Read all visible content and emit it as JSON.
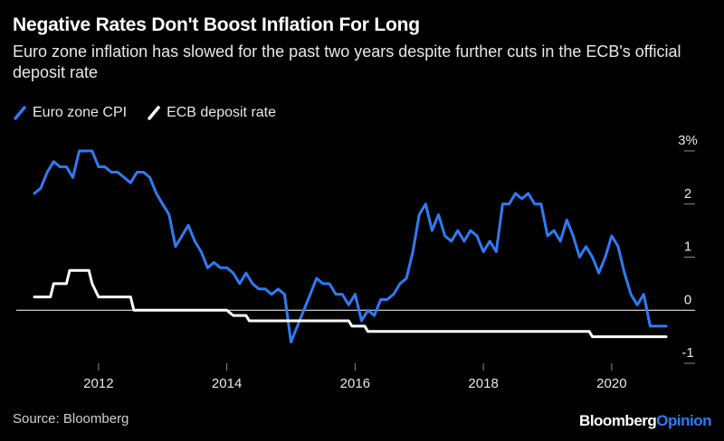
{
  "header": {
    "title": "Negative Rates Don't Boost Inflation For Long",
    "subtitle": "Euro zone inflation has slowed for the past two years despite further cuts in the ECB's official deposit rate"
  },
  "footer": {
    "source": "Source: Bloomberg",
    "brand_main": "Bloomberg",
    "brand_accent": "Opinion"
  },
  "colors": {
    "background": "#000000",
    "cpi": "#2f7bf5",
    "deposit": "#ffffff",
    "zero_line": "#ffffff",
    "brand_accent": "#2f7bf5"
  },
  "chart_data": {
    "type": "line",
    "title": "Negative Rates Don't Boost Inflation For Long",
    "xlabel": "",
    "ylabel": "",
    "xlim": [
      2011.0,
      2021.3
    ],
    "ylim": [
      -1,
      3
    ],
    "x_ticks": [
      2012,
      2014,
      2016,
      2018,
      2020
    ],
    "x_tick_labels": [
      "2012",
      "2014",
      "2016",
      "2018",
      "2020"
    ],
    "y_ticks": [
      3,
      2,
      1,
      0,
      -1
    ],
    "y_tick_labels": [
      "3%",
      "2",
      "1",
      "0",
      "-1"
    ],
    "legend": {
      "position": "top-left",
      "entries": [
        "Euro zone CPI",
        "ECB deposit rate"
      ]
    },
    "series": [
      {
        "name": "Euro zone CPI",
        "color": "#2f7bf5",
        "points": [
          [
            2011.0,
            2.2
          ],
          [
            2011.1,
            2.3
          ],
          [
            2011.2,
            2.6
          ],
          [
            2011.3,
            2.8
          ],
          [
            2011.4,
            2.7
          ],
          [
            2011.5,
            2.7
          ],
          [
            2011.6,
            2.5
          ],
          [
            2011.7,
            3.0
          ],
          [
            2011.8,
            3.0
          ],
          [
            2011.9,
            3.0
          ],
          [
            2012.0,
            2.7
          ],
          [
            2012.1,
            2.7
          ],
          [
            2012.2,
            2.6
          ],
          [
            2012.3,
            2.6
          ],
          [
            2012.4,
            2.5
          ],
          [
            2012.5,
            2.4
          ],
          [
            2012.6,
            2.6
          ],
          [
            2012.7,
            2.6
          ],
          [
            2012.8,
            2.5
          ],
          [
            2012.9,
            2.2
          ],
          [
            2013.0,
            2.0
          ],
          [
            2013.1,
            1.8
          ],
          [
            2013.2,
            1.2
          ],
          [
            2013.3,
            1.4
          ],
          [
            2013.4,
            1.6
          ],
          [
            2013.5,
            1.3
          ],
          [
            2013.6,
            1.1
          ],
          [
            2013.7,
            0.8
          ],
          [
            2013.8,
            0.9
          ],
          [
            2013.9,
            0.8
          ],
          [
            2014.0,
            0.8
          ],
          [
            2014.1,
            0.7
          ],
          [
            2014.2,
            0.5
          ],
          [
            2014.3,
            0.7
          ],
          [
            2014.4,
            0.5
          ],
          [
            2014.5,
            0.4
          ],
          [
            2014.6,
            0.4
          ],
          [
            2014.7,
            0.3
          ],
          [
            2014.8,
            0.4
          ],
          [
            2014.9,
            0.3
          ],
          [
            2015.0,
            -0.6
          ],
          [
            2015.1,
            -0.3
          ],
          [
            2015.2,
            0.0
          ],
          [
            2015.3,
            0.3
          ],
          [
            2015.4,
            0.6
          ],
          [
            2015.5,
            0.5
          ],
          [
            2015.6,
            0.5
          ],
          [
            2015.7,
            0.3
          ],
          [
            2015.8,
            0.3
          ],
          [
            2015.9,
            0.1
          ],
          [
            2016.0,
            0.3
          ],
          [
            2016.1,
            -0.2
          ],
          [
            2016.2,
            0.0
          ],
          [
            2016.3,
            -0.1
          ],
          [
            2016.4,
            0.2
          ],
          [
            2016.5,
            0.2
          ],
          [
            2016.6,
            0.3
          ],
          [
            2016.7,
            0.5
          ],
          [
            2016.8,
            0.6
          ],
          [
            2016.9,
            1.1
          ],
          [
            2017.0,
            1.8
          ],
          [
            2017.1,
            2.0
          ],
          [
            2017.2,
            1.5
          ],
          [
            2017.3,
            1.8
          ],
          [
            2017.4,
            1.4
          ],
          [
            2017.5,
            1.3
          ],
          [
            2017.6,
            1.5
          ],
          [
            2017.7,
            1.3
          ],
          [
            2017.8,
            1.5
          ],
          [
            2017.9,
            1.4
          ],
          [
            2018.0,
            1.1
          ],
          [
            2018.1,
            1.3
          ],
          [
            2018.2,
            1.1
          ],
          [
            2018.3,
            2.0
          ],
          [
            2018.4,
            2.0
          ],
          [
            2018.5,
            2.2
          ],
          [
            2018.6,
            2.1
          ],
          [
            2018.7,
            2.2
          ],
          [
            2018.8,
            2.0
          ],
          [
            2018.9,
            2.0
          ],
          [
            2019.0,
            1.4
          ],
          [
            2019.1,
            1.5
          ],
          [
            2019.2,
            1.3
          ],
          [
            2019.3,
            1.7
          ],
          [
            2019.4,
            1.4
          ],
          [
            2019.5,
            1.0
          ],
          [
            2019.6,
            1.2
          ],
          [
            2019.7,
            1.0
          ],
          [
            2019.8,
            0.7
          ],
          [
            2019.9,
            1.0
          ],
          [
            2020.0,
            1.4
          ],
          [
            2020.1,
            1.2
          ],
          [
            2020.2,
            0.7
          ],
          [
            2020.3,
            0.3
          ],
          [
            2020.4,
            0.1
          ],
          [
            2020.5,
            0.3
          ],
          [
            2020.6,
            -0.3
          ],
          [
            2020.7,
            -0.3
          ],
          [
            2020.8,
            -0.3
          ],
          [
            2020.85,
            -0.3
          ]
        ]
      },
      {
        "name": "ECB deposit rate",
        "color": "#ffffff",
        "points": [
          [
            2011.0,
            0.25
          ],
          [
            2011.25,
            0.25
          ],
          [
            2011.3,
            0.5
          ],
          [
            2011.5,
            0.5
          ],
          [
            2011.55,
            0.75
          ],
          [
            2011.85,
            0.75
          ],
          [
            2011.9,
            0.5
          ],
          [
            2012.0,
            0.25
          ],
          [
            2012.5,
            0.25
          ],
          [
            2012.55,
            0.0
          ],
          [
            2014.0,
            0.0
          ],
          [
            2014.1,
            -0.1
          ],
          [
            2014.3,
            -0.1
          ],
          [
            2014.35,
            -0.2
          ],
          [
            2015.9,
            -0.2
          ],
          [
            2015.95,
            -0.3
          ],
          [
            2016.15,
            -0.3
          ],
          [
            2016.2,
            -0.4
          ],
          [
            2019.65,
            -0.4
          ],
          [
            2019.7,
            -0.5
          ],
          [
            2020.85,
            -0.5
          ]
        ]
      }
    ]
  }
}
